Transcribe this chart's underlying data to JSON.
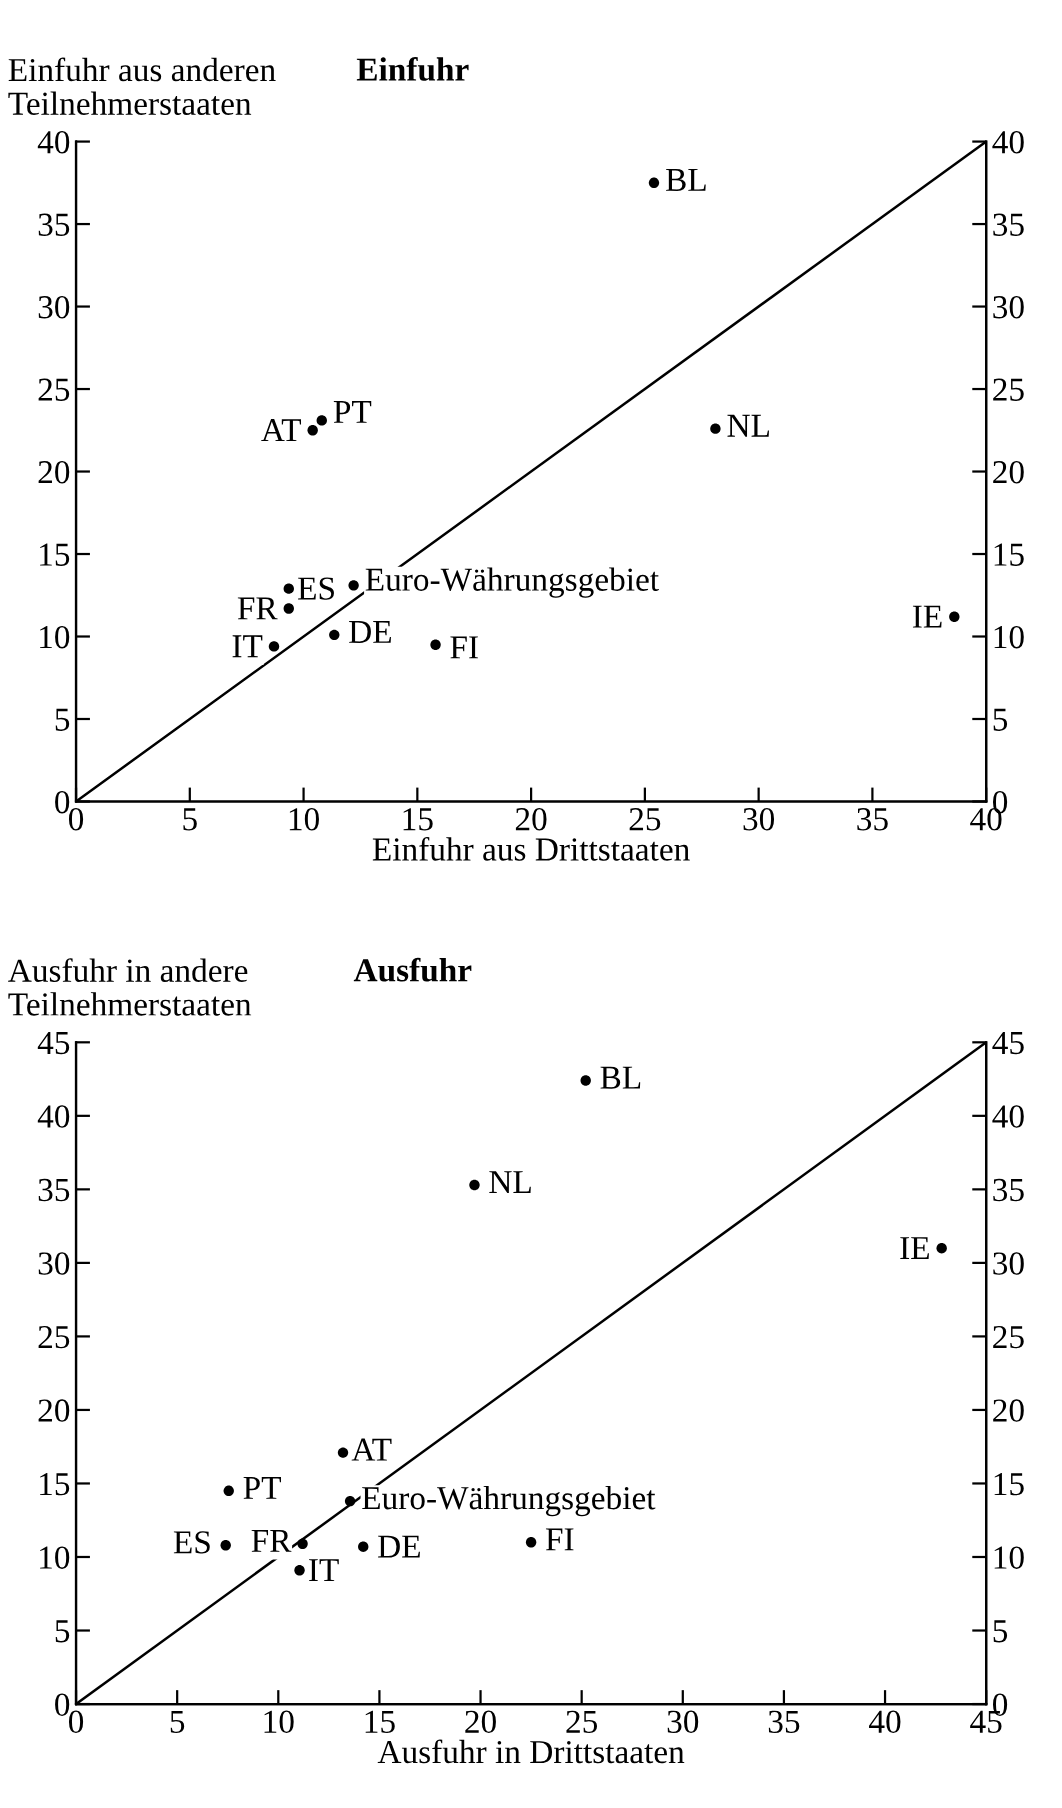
{
  "chart_data": [
    {
      "type": "scatter",
      "title": "Einfuhr",
      "xlabel": "Einfuhr aus Drittstaaten",
      "ylabel": "Einfuhr aus anderen\nTeilnehmerstaaten",
      "series": [
        {
          "color": "#000000",
          "marker": "circle",
          "x": [
            25.4,
            10.8,
            10.4,
            28.1,
            9.35,
            12.2,
            9.35,
            8.7,
            11.35,
            15.8,
            38.6
          ],
          "values": [
            37.5,
            23.1,
            22.5,
            22.6,
            12.9,
            13.1,
            11.7,
            9.4,
            10.1,
            9.5,
            11.2
          ]
        },
        {
          "type": "line",
          "marker": "none",
          "color": "#000000",
          "x": [
            0,
            40
          ],
          "values": [
            0,
            40
          ]
        }
      ],
      "annotations": [
        {
          "text": "BL",
          "x": 25.4,
          "y": 37.5
        },
        {
          "text": "PT",
          "x": 10.8,
          "y": 23.1
        },
        {
          "text": "AT",
          "x": 10.4,
          "y": 22.5
        },
        {
          "text": "NL",
          "x": 28.1,
          "y": 22.6
        },
        {
          "text": "ES",
          "x": 9.35,
          "y": 12.9
        },
        {
          "text": "Euro-Währungsgebiet",
          "x": 12.2,
          "y": 13.1
        },
        {
          "text": "FR",
          "x": 9.35,
          "y": 11.7
        },
        {
          "text": "IT",
          "x": 8.7,
          "y": 9.4
        },
        {
          "text": "DE",
          "x": 11.35,
          "y": 10.1
        },
        {
          "text": "FI",
          "x": 15.8,
          "y": 9.5
        },
        {
          "text": "IE",
          "x": 38.6,
          "y": 11.2
        }
      ],
      "xlim": [
        0,
        40
      ],
      "ylim": [
        0,
        40
      ],
      "y2lim": [
        0,
        40
      ],
      "xticks": [
        0,
        5,
        10,
        15,
        20,
        25,
        30,
        35,
        40
      ],
      "yticks": [
        0,
        5,
        10,
        15,
        20,
        25,
        30,
        35,
        40
      ],
      "y2ticks": [
        0,
        5,
        10,
        15,
        20,
        25,
        30,
        35,
        40
      ],
      "grid": false,
      "legend": false
    },
    {
      "type": "scatter",
      "title": "Ausfuhr",
      "xlabel": "Ausfuhr in Drittstaaten",
      "ylabel": "Ausfuhr in andere\nTeilnehmerstaaten",
      "series": [
        {
          "color": "#000000",
          "marker": "circle",
          "x": [
            25.2,
            19.7,
            42.8,
            13.2,
            7.55,
            13.55,
            7.4,
            11.2,
            11.05,
            14.2,
            22.5
          ],
          "values": [
            42.4,
            35.3,
            31.0,
            17.1,
            14.5,
            13.8,
            10.8,
            10.9,
            9.1,
            10.7,
            11.0
          ]
        },
        {
          "type": "line",
          "marker": "none",
          "color": "#000000",
          "x": [
            0,
            45
          ],
          "values": [
            0,
            45
          ]
        }
      ],
      "annotations": [
        {
          "text": "BL",
          "x": 25.2,
          "y": 42.4
        },
        {
          "text": "NL",
          "x": 19.7,
          "y": 35.3
        },
        {
          "text": "IE",
          "x": 42.8,
          "y": 31.0
        },
        {
          "text": "AT",
          "x": 13.2,
          "y": 17.1
        },
        {
          "text": "PT",
          "x": 7.55,
          "y": 14.5
        },
        {
          "text": "Euro-Währungsgebiet",
          "x": 13.55,
          "y": 13.8
        },
        {
          "text": "ES",
          "x": 7.4,
          "y": 10.8
        },
        {
          "text": "FR",
          "x": 11.2,
          "y": 10.9
        },
        {
          "text": "IT",
          "x": 11.05,
          "y": 9.1
        },
        {
          "text": "DE",
          "x": 14.2,
          "y": 10.7
        },
        {
          "text": "FI",
          "x": 22.5,
          "y": 11.0
        }
      ],
      "xlim": [
        0,
        45
      ],
      "ylim": [
        0,
        45
      ],
      "y2lim": [
        0,
        45
      ],
      "xticks": [
        0,
        5,
        10,
        15,
        20,
        25,
        30,
        35,
        40,
        45
      ],
      "yticks": [
        0,
        5,
        10,
        15,
        20,
        25,
        30,
        35,
        40,
        45
      ],
      "y2ticks": [
        0,
        5,
        10,
        15,
        20,
        25,
        30,
        35,
        40,
        45
      ],
      "grid": false,
      "legend": false
    }
  ]
}
